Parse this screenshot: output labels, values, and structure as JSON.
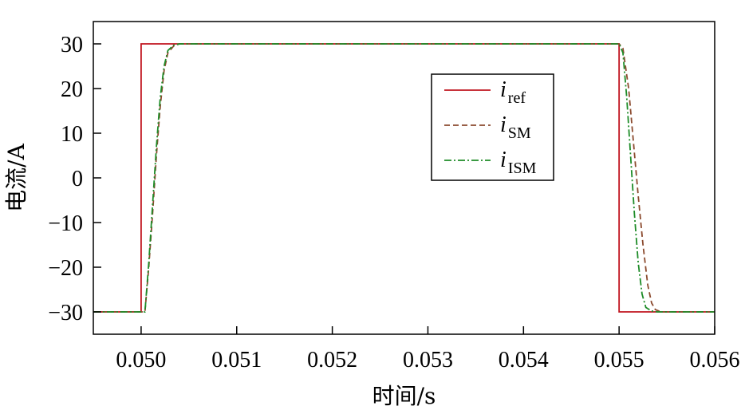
{
  "chart_data": {
    "type": "line",
    "xlabel": "时间/s",
    "ylabel": "电流/A",
    "xlim": [
      0.0495,
      0.056
    ],
    "ylim": [
      -35,
      35
    ],
    "xticks": [
      "0.050",
      "0.051",
      "0.052",
      "0.053",
      "0.054",
      "0.055",
      "0.056"
    ],
    "xtick_values": [
      0.05,
      0.051,
      0.052,
      0.053,
      0.054,
      0.055,
      0.056
    ],
    "yticks": [
      "30",
      "20",
      "10",
      "0",
      "−10",
      "−20",
      "−30"
    ],
    "ytick_values": [
      30,
      20,
      10,
      0,
      -10,
      -20,
      -30
    ],
    "grid": false,
    "legend_position": "upper-right",
    "series": [
      {
        "name": "i",
        "subscript": "ref",
        "color": "#c0141e",
        "style": "solid",
        "x": [
          0.0495,
          0.05,
          0.05,
          0.055,
          0.055,
          0.056
        ],
        "y": [
          -30,
          -30,
          30,
          30,
          -30,
          -30
        ]
      },
      {
        "name": "i",
        "subscript": "SM",
        "color": "#8b4a2e",
        "style": "dashed",
        "x": [
          0.0495,
          0.05004,
          0.05008,
          0.05012,
          0.05016,
          0.0502,
          0.05024,
          0.05028,
          0.05034,
          0.0504,
          0.0505,
          0.055,
          0.05504,
          0.0551,
          0.05515,
          0.0552,
          0.05525,
          0.0553,
          0.05534,
          0.05538,
          0.05544,
          0.056
        ],
        "y": [
          -30,
          -30,
          -20,
          -8,
          5,
          16,
          24,
          28,
          29.5,
          30,
          30,
          30,
          29,
          20,
          8,
          -4,
          -15,
          -24,
          -28,
          -29.5,
          -30,
          -30
        ]
      },
      {
        "name": "i",
        "subscript": "ISM",
        "color": "#1e8c28",
        "style": "dashdot",
        "x": [
          0.0495,
          0.05004,
          0.05008,
          0.05012,
          0.05016,
          0.0502,
          0.05024,
          0.05028,
          0.05034,
          0.0504,
          0.0505,
          0.055,
          0.05504,
          0.05508,
          0.05512,
          0.05516,
          0.0552,
          0.05524,
          0.05528,
          0.05534,
          0.0554,
          0.056
        ],
        "y": [
          -30,
          -30,
          -19,
          -6,
          7,
          18,
          25,
          28.5,
          29.7,
          30,
          30,
          30,
          28,
          18,
          5,
          -8,
          -19,
          -26,
          -29,
          -29.8,
          -30,
          -30
        ]
      }
    ]
  }
}
